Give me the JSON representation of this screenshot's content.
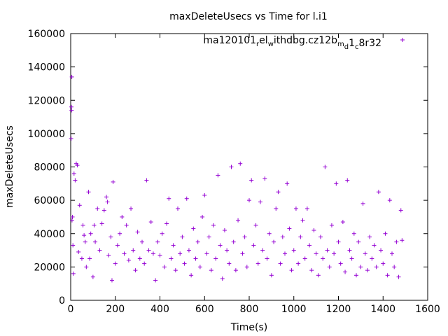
{
  "chart_data": {
    "type": "scatter",
    "title": "maxDeleteUsecs vs Time for l.i1",
    "xlabel": "Time(s)",
    "ylabel": "maxDeleteUsecs",
    "xlim": [
      0,
      1600
    ],
    "ylim": [
      0,
      160000
    ],
    "xticks": [
      0,
      200,
      400,
      600,
      800,
      1000,
      1200,
      1400,
      1600
    ],
    "yticks": [
      0,
      20000,
      40000,
      60000,
      80000,
      100000,
      120000,
      140000,
      160000
    ],
    "grid": false,
    "legend_position": "top-right",
    "marker": "+",
    "series": [
      {
        "name": "ma120101_rel_withdbg.cz12b_m_d1_c8r32",
        "color": "#9400d3",
        "points": [
          [
            2,
            97000
          ],
          [
            3,
            116000
          ],
          [
            4,
            114000
          ],
          [
            5,
            134000
          ],
          [
            6,
            48000
          ],
          [
            8,
            50000
          ],
          [
            10,
            33000
          ],
          [
            12,
            16000
          ],
          [
            15,
            76000
          ],
          [
            20,
            72000
          ],
          [
            25,
            82000
          ],
          [
            30,
            81000
          ],
          [
            35,
            29000
          ],
          [
            40,
            57000
          ],
          [
            50,
            25000
          ],
          [
            55,
            45000
          ],
          [
            60,
            39000
          ],
          [
            65,
            35000
          ],
          [
            70,
            20000
          ],
          [
            80,
            65000
          ],
          [
            85,
            25000
          ],
          [
            90,
            40000
          ],
          [
            100,
            14000
          ],
          [
            105,
            45000
          ],
          [
            110,
            35000
          ],
          [
            120,
            55000
          ],
          [
            130,
            30000
          ],
          [
            140,
            46000
          ],
          [
            150,
            54000
          ],
          [
            160,
            62000
          ],
          [
            165,
            59000
          ],
          [
            170,
            27000
          ],
          [
            180,
            38000
          ],
          [
            185,
            12000
          ],
          [
            190,
            71000
          ],
          [
            200,
            22000
          ],
          [
            210,
            33000
          ],
          [
            220,
            40000
          ],
          [
            230,
            50000
          ],
          [
            240,
            28000
          ],
          [
            250,
            45000
          ],
          [
            260,
            24000
          ],
          [
            270,
            55000
          ],
          [
            280,
            30000
          ],
          [
            290,
            18000
          ],
          [
            300,
            41000
          ],
          [
            310,
            25000
          ],
          [
            320,
            35000
          ],
          [
            330,
            22000
          ],
          [
            340,
            72000
          ],
          [
            350,
            30000
          ],
          [
            360,
            47000
          ],
          [
            370,
            28000
          ],
          [
            380,
            12000
          ],
          [
            390,
            35000
          ],
          [
            400,
            27000
          ],
          [
            410,
            40000
          ],
          [
            420,
            20000
          ],
          [
            430,
            46000
          ],
          [
            440,
            61000
          ],
          [
            450,
            25000
          ],
          [
            460,
            33000
          ],
          [
            470,
            18000
          ],
          [
            480,
            55000
          ],
          [
            490,
            28000
          ],
          [
            500,
            38000
          ],
          [
            510,
            22000
          ],
          [
            520,
            61000
          ],
          [
            530,
            30000
          ],
          [
            540,
            15000
          ],
          [
            550,
            43000
          ],
          [
            560,
            25000
          ],
          [
            570,
            35000
          ],
          [
            580,
            20000
          ],
          [
            590,
            50000
          ],
          [
            600,
            63000
          ],
          [
            610,
            28000
          ],
          [
            620,
            38000
          ],
          [
            630,
            18000
          ],
          [
            640,
            45000
          ],
          [
            650,
            25000
          ],
          [
            660,
            75000
          ],
          [
            670,
            33000
          ],
          [
            680,
            13000
          ],
          [
            690,
            42000
          ],
          [
            700,
            30000
          ],
          [
            710,
            22000
          ],
          [
            720,
            80000
          ],
          [
            730,
            35000
          ],
          [
            740,
            18000
          ],
          [
            750,
            48000
          ],
          [
            760,
            82000
          ],
          [
            770,
            28000
          ],
          [
            780,
            38000
          ],
          [
            790,
            20000
          ],
          [
            800,
            60000
          ],
          [
            810,
            72000
          ],
          [
            820,
            33000
          ],
          [
            830,
            45000
          ],
          [
            840,
            22000
          ],
          [
            850,
            59000
          ],
          [
            860,
            30000
          ],
          [
            870,
            73000
          ],
          [
            880,
            25000
          ],
          [
            890,
            40000
          ],
          [
            900,
            15000
          ],
          [
            910,
            35000
          ],
          [
            920,
            55000
          ],
          [
            930,
            65000
          ],
          [
            940,
            22000
          ],
          [
            950,
            38000
          ],
          [
            960,
            28000
          ],
          [
            970,
            70000
          ],
          [
            980,
            43000
          ],
          [
            990,
            18000
          ],
          [
            1000,
            30000
          ],
          [
            1010,
            55000
          ],
          [
            1020,
            22000
          ],
          [
            1030,
            38000
          ],
          [
            1040,
            48000
          ],
          [
            1050,
            25000
          ],
          [
            1060,
            55000
          ],
          [
            1070,
            33000
          ],
          [
            1080,
            18000
          ],
          [
            1090,
            42000
          ],
          [
            1100,
            28000
          ],
          [
            1110,
            15000
          ],
          [
            1120,
            38000
          ],
          [
            1130,
            25000
          ],
          [
            1140,
            80000
          ],
          [
            1150,
            30000
          ],
          [
            1160,
            20000
          ],
          [
            1170,
            45000
          ],
          [
            1180,
            28000
          ],
          [
            1190,
            70000
          ],
          [
            1200,
            35000
          ],
          [
            1210,
            22000
          ],
          [
            1220,
            47000
          ],
          [
            1230,
            17000
          ],
          [
            1240,
            72000
          ],
          [
            1250,
            30000
          ],
          [
            1260,
            25000
          ],
          [
            1270,
            40000
          ],
          [
            1280,
            15000
          ],
          [
            1290,
            35000
          ],
          [
            1300,
            20000
          ],
          [
            1310,
            58000
          ],
          [
            1320,
            28000
          ],
          [
            1330,
            18000
          ],
          [
            1340,
            38000
          ],
          [
            1350,
            25000
          ],
          [
            1360,
            33000
          ],
          [
            1370,
            20000
          ],
          [
            1380,
            65000
          ],
          [
            1390,
            30000
          ],
          [
            1400,
            22000
          ],
          [
            1410,
            40000
          ],
          [
            1420,
            15000
          ],
          [
            1430,
            60000
          ],
          [
            1440,
            28000
          ],
          [
            1450,
            20000
          ],
          [
            1460,
            35000
          ],
          [
            1470,
            14000
          ],
          [
            1480,
            54000
          ],
          [
            1485,
            36000
          ]
        ]
      }
    ]
  }
}
